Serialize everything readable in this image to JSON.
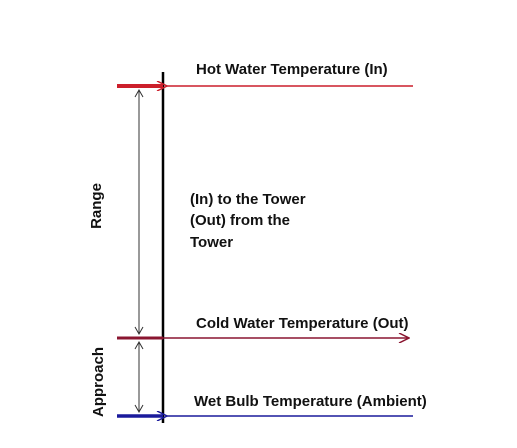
{
  "labels": {
    "hot_water": "Hot Water Temperature (In)",
    "cold_water": "Cold Water Temperature (Out)",
    "wet_bulb": "Wet Bulb Temperature  (Ambient)"
  },
  "notes": {
    "line1": "(In) to the Tower",
    "line2": "(Out) from the",
    "line3": "Tower"
  },
  "dimensions": {
    "range": "Range",
    "approach": "Approach"
  },
  "colors": {
    "hot": "#cc1f2b",
    "cold": "#8a1530",
    "wet_bulb": "#1a1a9c",
    "axis": "#000000",
    "dimension": "#333333"
  }
}
